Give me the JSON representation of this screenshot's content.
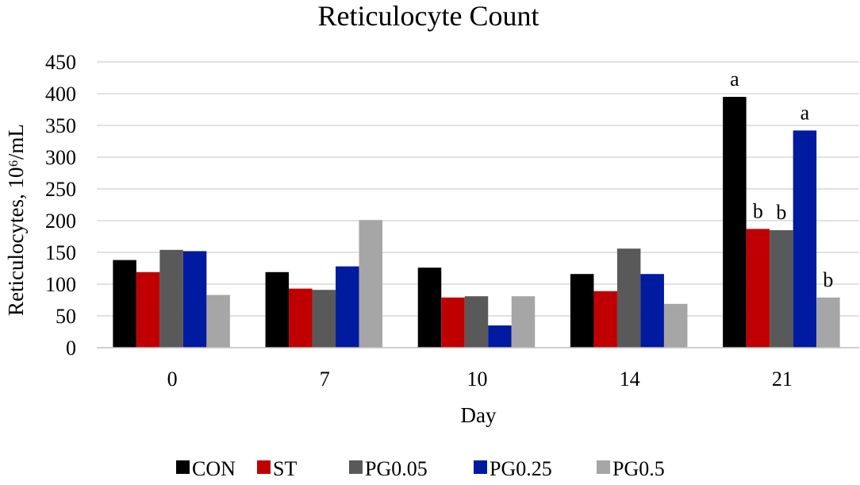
{
  "chart_data": {
    "type": "bar",
    "title": "Reticulocyte Count",
    "xlabel": "Day",
    "ylabel": "Reticulocytes, 10⁶/mL",
    "ylim": [
      0,
      450
    ],
    "yticks": [
      0,
      50,
      100,
      150,
      200,
      250,
      300,
      350,
      400,
      450
    ],
    "categories": [
      "0",
      "7",
      "10",
      "14",
      "21"
    ],
    "series": [
      {
        "name": "CON",
        "color": "#000000",
        "values": [
          138,
          119,
          126,
          116,
          395
        ]
      },
      {
        "name": "ST",
        "color": "#c00000",
        "values": [
          119,
          93,
          79,
          89,
          187
        ]
      },
      {
        "name": "PG0.05",
        "color": "#595959",
        "values": [
          154,
          91,
          81,
          156,
          185
        ]
      },
      {
        "name": "PG0.25",
        "color": "#001aa0",
        "values": [
          152,
          128,
          35,
          116,
          342
        ]
      },
      {
        "name": "PG0.5",
        "color": "#a6a6a6",
        "values": [
          83,
          201,
          81,
          69,
          79
        ]
      }
    ],
    "annotations": [
      {
        "category": "21",
        "series": "CON",
        "text": "a"
      },
      {
        "category": "21",
        "series": "ST",
        "text": "b"
      },
      {
        "category": "21",
        "series": "PG0.05",
        "text": "b"
      },
      {
        "category": "21",
        "series": "PG0.25",
        "text": "a"
      },
      {
        "category": "21",
        "series": "PG0.5",
        "text": "b"
      }
    ],
    "grid": true,
    "legend": "bottom"
  }
}
